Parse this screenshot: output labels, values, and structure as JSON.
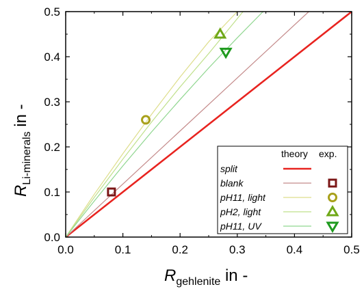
{
  "chart_data": {
    "type": "line",
    "xlabel": {
      "main": "R",
      "sub": "gehlenite",
      "unit": " in -"
    },
    "ylabel": {
      "main": "R",
      "sub": "Li-minerals",
      "unit": " in -"
    },
    "xlim": [
      0.0,
      0.5
    ],
    "ylim": [
      0.0,
      0.5
    ],
    "xticks": [
      0.0,
      0.1,
      0.2,
      0.3,
      0.4,
      0.5
    ],
    "yticks": [
      0.0,
      0.1,
      0.2,
      0.3,
      0.4,
      0.5
    ],
    "tick_labels_x": [
      "0.0",
      "0.1",
      "0.2",
      "0.3",
      "0.4",
      "0.5"
    ],
    "tick_labels_y": [
      "0.0",
      "0.1",
      "0.2",
      "0.3",
      "0.4",
      "0.5"
    ],
    "grid": false,
    "legend": {
      "placement": "bottom-right",
      "header_theory": "theory",
      "header_exp": "exp."
    },
    "series": [
      {
        "name": "split",
        "color": "#e8231f",
        "line_width": "thick",
        "theory_x": [
          0.0,
          0.5
        ],
        "theory_y": [
          0.0,
          0.5
        ],
        "marker": "none",
        "exp": []
      },
      {
        "name": "blank",
        "color": "#c48a8a",
        "marker_color": "#7b1616",
        "marker": "square",
        "theory_x": [
          0.0,
          0.425
        ],
        "theory_y": [
          0.0,
          0.5
        ],
        "exp": [
          [
            0.08,
            0.1
          ]
        ]
      },
      {
        "name": "pH11, light",
        "color": "#dede8c",
        "marker_color": "#a8a01a",
        "marker": "circle",
        "theory_x": [
          0.0,
          0.05,
          0.1,
          0.15,
          0.2,
          0.25,
          0.3
        ],
        "theory_y": [
          0.0,
          0.095,
          0.185,
          0.272,
          0.355,
          0.433,
          0.5
        ],
        "exp": [
          [
            0.14,
            0.26
          ]
        ]
      },
      {
        "name": "pH2, light",
        "color": "#bfe08a",
        "marker_color": "#6fa818",
        "marker": "triangle-up",
        "theory_x": [
          0.0,
          0.05,
          0.1,
          0.15,
          0.2,
          0.25,
          0.31
        ],
        "theory_y": [
          0.0,
          0.088,
          0.173,
          0.255,
          0.333,
          0.407,
          0.5
        ],
        "exp": [
          [
            0.27,
            0.45
          ]
        ]
      },
      {
        "name": "pH11, UV",
        "color": "#8fd68f",
        "marker_color": "#1e9a1e",
        "marker": "triangle-down",
        "theory_x": [
          0.0,
          0.05,
          0.1,
          0.15,
          0.2,
          0.25,
          0.3,
          0.345
        ],
        "theory_y": [
          0.0,
          0.08,
          0.158,
          0.233,
          0.305,
          0.375,
          0.442,
          0.5
        ],
        "exp": [
          [
            0.28,
            0.41
          ]
        ]
      }
    ]
  }
}
